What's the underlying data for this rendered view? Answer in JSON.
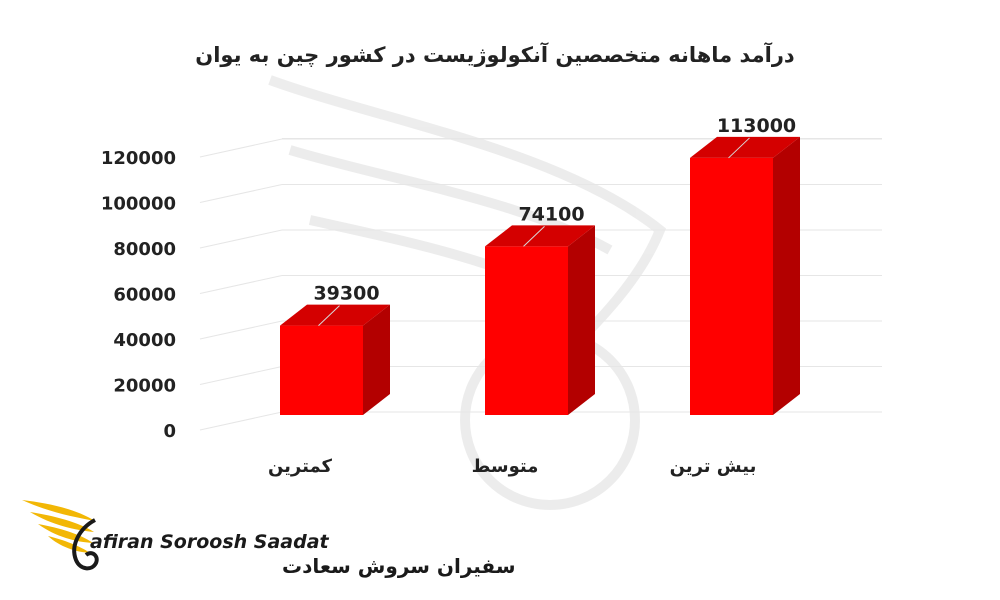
{
  "chart_data": {
    "type": "bar",
    "title": "درآمد ماهانه متخصصین آنکولوژیست در کشور چین  به یوان",
    "categories": [
      "کمترین",
      "متوسط",
      "بیش ترین"
    ],
    "values": [
      39300,
      74100,
      113000
    ],
    "value_labels": [
      "39300",
      "74100",
      "113000"
    ],
    "ylim": [
      0,
      120000
    ],
    "yticks": [
      0,
      20000,
      40000,
      60000,
      80000,
      100000,
      120000
    ],
    "ytick_labels": [
      "0",
      "20000",
      "40000",
      "60000",
      "80000",
      "100000",
      "120000"
    ],
    "grid": true,
    "legend": "none",
    "bar_color": "#ff0000",
    "bar_side_color": "#b30000",
    "bar_top_color": "#d40000"
  },
  "logo": {
    "latin_text": "afiran Soroosh Saadat",
    "persian_text": "سفیران سروش سعادت",
    "accent_color": "#f2b705"
  }
}
